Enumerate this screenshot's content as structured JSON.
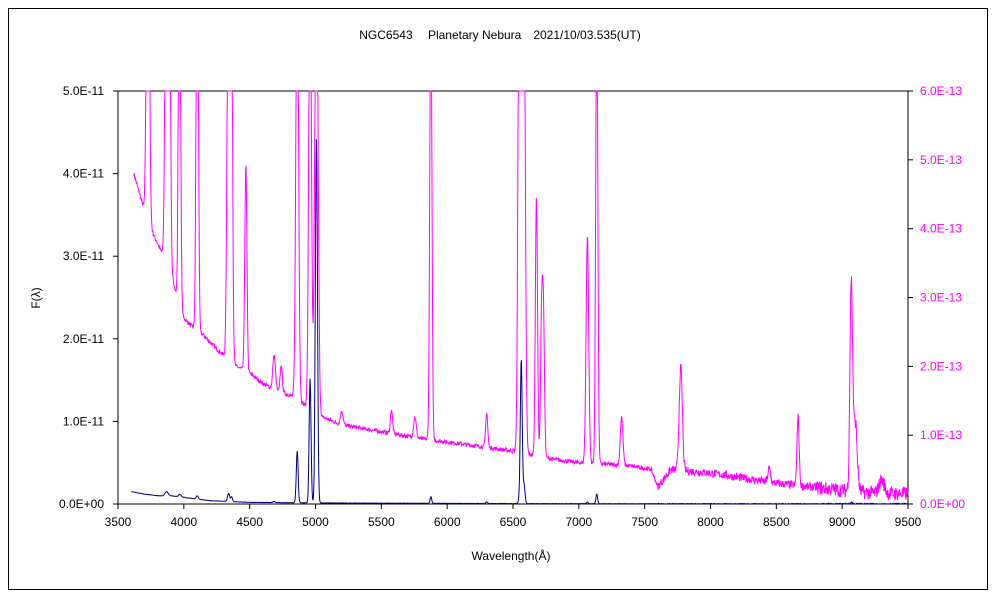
{
  "chart_data": {
    "type": "line",
    "title": "NGC6543　 Planetary Nebura　2021/10/03.535(UT)",
    "xlabel": "Wavelength(Å)",
    "ylabel": "F(λ)",
    "xlim": [
      3500,
      9500
    ],
    "xticks": [
      3500,
      4000,
      4500,
      5000,
      5500,
      6000,
      6500,
      7000,
      7500,
      8000,
      8500,
      9000,
      9500
    ],
    "ylim_left": [
      0,
      5e-11
    ],
    "yticks_left": [
      "0.0E+00",
      "1.0E-11",
      "2.0E-11",
      "3.0E-11",
      "4.0E-11",
      "5.0E-11"
    ],
    "ylim_right": [
      0,
      6e-13
    ],
    "yticks_right": [
      "0.0E+00",
      "1.0E-13",
      "2.0E-13",
      "3.0E-13",
      "4.0E-13",
      "5.0E-13",
      "6.0E-13"
    ],
    "grid": false,
    "colors": {
      "series_main": "#000080",
      "series_scaled": "#ff00ff"
    },
    "series": [
      {
        "axis": "left",
        "continuum": [
          [
            3600,
            1.5e-12
          ],
          [
            3700,
            1.2e-12
          ],
          [
            3800,
            1e-12
          ],
          [
            3900,
            1e-12
          ],
          [
            4000,
            8e-13
          ],
          [
            4200,
            4e-13
          ],
          [
            4500,
            2e-13
          ],
          [
            4800,
            1.5e-13
          ],
          [
            5500,
            1e-13
          ],
          [
            6500,
            5e-14
          ],
          [
            7500,
            3e-14
          ],
          [
            8500,
            2e-14
          ],
          [
            9500,
            2e-14
          ]
        ],
        "lines": [
          [
            3869,
            5e-13,
            12
          ],
          [
            3970,
            3e-13,
            10
          ],
          [
            4102,
            4e-13,
            8
          ],
          [
            4340,
            1e-12,
            8
          ],
          [
            4363,
            6e-13,
            6
          ],
          [
            4686,
            1.5e-13,
            8
          ],
          [
            4861,
            6.3e-12,
            7
          ],
          [
            4959,
            1.5e-11,
            7
          ],
          [
            5007,
            4.4e-11,
            8
          ],
          [
            5876,
            8e-13,
            6
          ],
          [
            6300,
            2e-13,
            6
          ],
          [
            6548,
            8e-13,
            6
          ],
          [
            6563,
            1.75e-11,
            7
          ],
          [
            6584,
            2.3e-12,
            7
          ],
          [
            7065,
            2e-13,
            6
          ],
          [
            7136,
            1.2e-12,
            6
          ],
          [
            9069,
            2e-13,
            8
          ]
        ]
      },
      {
        "axis": "right",
        "continuum": [
          [
            3620,
            4.8e-13
          ],
          [
            3680,
            4.4e-13
          ],
          [
            3750,
            4e-13
          ],
          [
            3820,
            3.7e-13
          ],
          [
            3900,
            3.4e-13
          ],
          [
            3950,
            3e-13
          ],
          [
            4000,
            2.7e-13
          ],
          [
            4050,
            2.6e-13
          ],
          [
            4150,
            2.45e-13
          ],
          [
            4250,
            2.25e-13
          ],
          [
            4400,
            2e-13
          ],
          [
            4500,
            1.9e-13
          ],
          [
            4600,
            1.75e-13
          ],
          [
            4700,
            1.65e-13
          ],
          [
            4850,
            1.55e-13
          ],
          [
            5000,
            1.3e-13
          ],
          [
            5200,
            1.15e-13
          ],
          [
            5500,
            1.05e-13
          ],
          [
            5800,
            9.5e-14
          ],
          [
            6200,
            8.5e-14
          ],
          [
            6500,
            7.7e-14
          ],
          [
            6800,
            6.5e-14
          ],
          [
            7000,
            6e-14
          ],
          [
            7200,
            5.8e-14
          ],
          [
            7400,
            5.5e-14
          ],
          [
            7550,
            5e-14
          ],
          [
            7600,
            2.5e-14
          ],
          [
            7700,
            5e-14
          ],
          [
            8000,
            4.5e-14
          ],
          [
            8500,
            3e-14
          ],
          [
            9000,
            2e-14
          ],
          [
            9300,
            1.5e-14
          ],
          [
            9500,
            1.5e-14
          ]
        ],
        "lines": [
          [
            3727,
            7e-13,
            10
          ],
          [
            3869,
            7e-13,
            10
          ],
          [
            3890,
            6e-13,
            8
          ],
          [
            3967,
            6e-13,
            8
          ],
          [
            4102,
            7e-13,
            8
          ],
          [
            4340,
            7e-13,
            10
          ],
          [
            4363,
            5e-13,
            8
          ],
          [
            4471,
            3e-13,
            8
          ],
          [
            4686,
            5e-14,
            10
          ],
          [
            4740,
            4e-14,
            8
          ],
          [
            4861,
            7e-13,
            10
          ],
          [
            4959,
            7e-13,
            10
          ],
          [
            5007,
            7e-13,
            12
          ],
          [
            5200,
            2e-14,
            10
          ],
          [
            5577,
            3.5e-14,
            8
          ],
          [
            5755,
            3e-14,
            10
          ],
          [
            5876,
            7e-13,
            8
          ],
          [
            6300,
            5e-14,
            8
          ],
          [
            6548,
            7e-13,
            10
          ],
          [
            6563,
            7e-13,
            10
          ],
          [
            6584,
            7e-13,
            10
          ],
          [
            6678,
            3.8e-13,
            8
          ],
          [
            6717,
            1.9e-13,
            8
          ],
          [
            6731,
            2e-13,
            8
          ],
          [
            7065,
            3.3e-13,
            10
          ],
          [
            7136,
            7e-13,
            8
          ],
          [
            7325,
            7e-14,
            10
          ],
          [
            7774,
            1.5e-13,
            12
          ],
          [
            8446,
            2e-14,
            10
          ],
          [
            8665,
            1e-13,
            8
          ],
          [
            9069,
            3e-13,
            10
          ],
          [
            9100,
            1e-13,
            14
          ],
          [
            9300,
            2e-14,
            20
          ]
        ]
      }
    ]
  }
}
